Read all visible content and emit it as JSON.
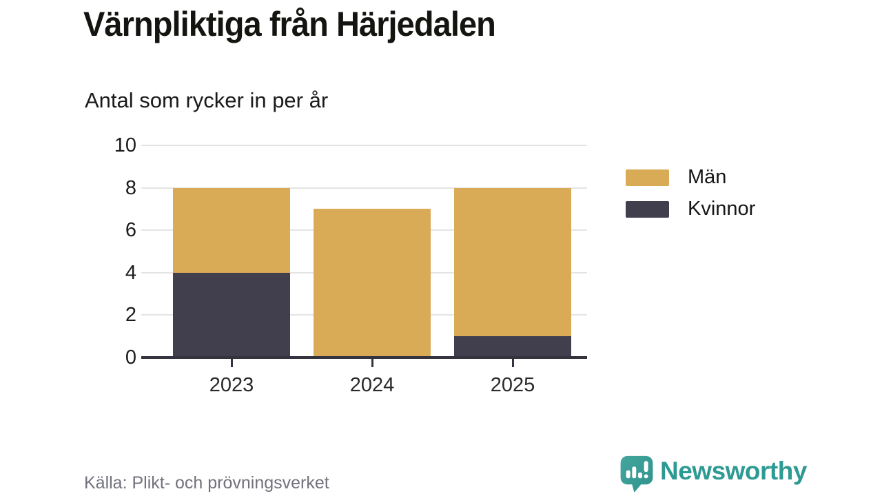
{
  "title": "Värnpliktiga från Härjedalen",
  "subtitle": "Antal som rycker in per år",
  "source": "Källa: Plikt- och prövningsverket",
  "brand": {
    "name": "Newsworthy",
    "color": "#2d9a93",
    "icon": "newsworthy-speech-bubble-bar-chart-icon"
  },
  "legend": {
    "items": [
      {
        "label": "Män",
        "color": "#d9ab57"
      },
      {
        "label": "Kvinnor",
        "color": "#413f4e"
      }
    ]
  },
  "colors": {
    "men_bar": "#d9ab57",
    "women_bar": "#413f4e",
    "gridline": "#e4e4e4",
    "axis": "#35333d",
    "source_text": "#72727d",
    "brand_teal": "#2d9a93"
  },
  "chart_data": {
    "type": "bar",
    "stacked": true,
    "title": "Värnpliktiga från Härjedalen",
    "subtitle": "Antal som rycker in per år",
    "categories": [
      "2023",
      "2024",
      "2025"
    ],
    "series": [
      {
        "name": "Män",
        "color": "#d9ab57",
        "values": [
          4,
          7,
          7
        ]
      },
      {
        "name": "Kvinnor",
        "color": "#413f4e",
        "values": [
          4,
          0,
          1
        ]
      }
    ],
    "totals": [
      8,
      7,
      8
    ],
    "xlabel": "",
    "ylabel": "",
    "ylim": [
      0,
      10
    ],
    "yticks": [
      0,
      2,
      4,
      6,
      8,
      10
    ],
    "grid": true,
    "legend_position": "right",
    "source": "Källa: Plikt- och prövningsverket"
  }
}
